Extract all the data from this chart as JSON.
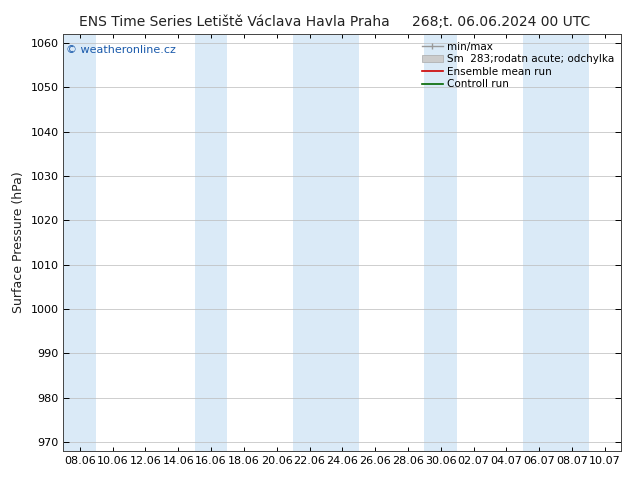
{
  "title_left": "ENS Time Series Letiště Václava Havla Praha",
  "title_right": "268;t. 06.06.2024 00 UTC",
  "ylabel": "Surface Pressure (hPa)",
  "watermark": "© weatheronline.cz",
  "ylim": [
    968,
    1062
  ],
  "yticks": [
    970,
    980,
    990,
    1000,
    1010,
    1020,
    1030,
    1040,
    1050,
    1060
  ],
  "xtick_labels": [
    "08.06",
    "10.06",
    "12.06",
    "14.06",
    "16.06",
    "18.06",
    "20.06",
    "22.06",
    "24.06",
    "26.06",
    "28.06",
    "30.06",
    "02.07",
    "04.07",
    "06.07",
    "08.07",
    "10.07"
  ],
  "n_xticks": 17,
  "background_color": "#ffffff",
  "plot_bg_color": "#ffffff",
  "band_color": "#daeaf7",
  "band_edge_color": "#c0d8ee",
  "grid_color": "#bbbbbb",
  "legend_minmax_color": "#999999",
  "legend_std_color": "#cccccc",
  "legend_mean_color": "#cc0000",
  "legend_ctrl_color": "#006600",
  "band_indices": [
    0,
    4,
    7,
    8,
    11,
    14,
    15
  ],
  "watermark_color": "#1a5aab",
  "title_fontsize": 10,
  "axis_label_fontsize": 9,
  "tick_fontsize": 8
}
